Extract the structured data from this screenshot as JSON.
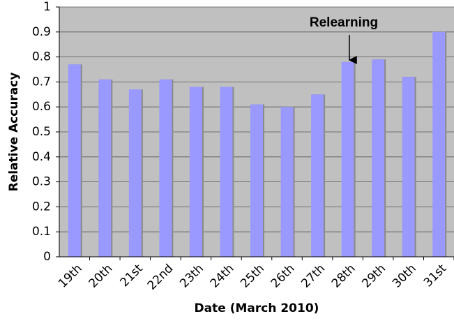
{
  "chart_data": {
    "type": "bar",
    "annotation": "Relearning",
    "x_label": "Date (March 2010)",
    "y_label": "Relative Accuracy",
    "categories": [
      "19th",
      "20th",
      "21st",
      "22nd",
      "23th",
      "24th",
      "25th",
      "26th",
      "27th",
      "28th",
      "29th",
      "30th",
      "31st"
    ],
    "values": [
      0.77,
      0.71,
      0.67,
      0.71,
      0.68,
      0.68,
      0.61,
      0.6,
      0.65,
      0.78,
      0.79,
      0.72,
      0.9
    ],
    "color": "#9999ff",
    "ylim": [
      0,
      1
    ],
    "yticks": [
      0,
      0.1,
      0.2,
      0.3,
      0.4,
      0.5,
      0.6,
      0.7,
      0.8,
      0.9,
      1
    ],
    "grid": true
  }
}
